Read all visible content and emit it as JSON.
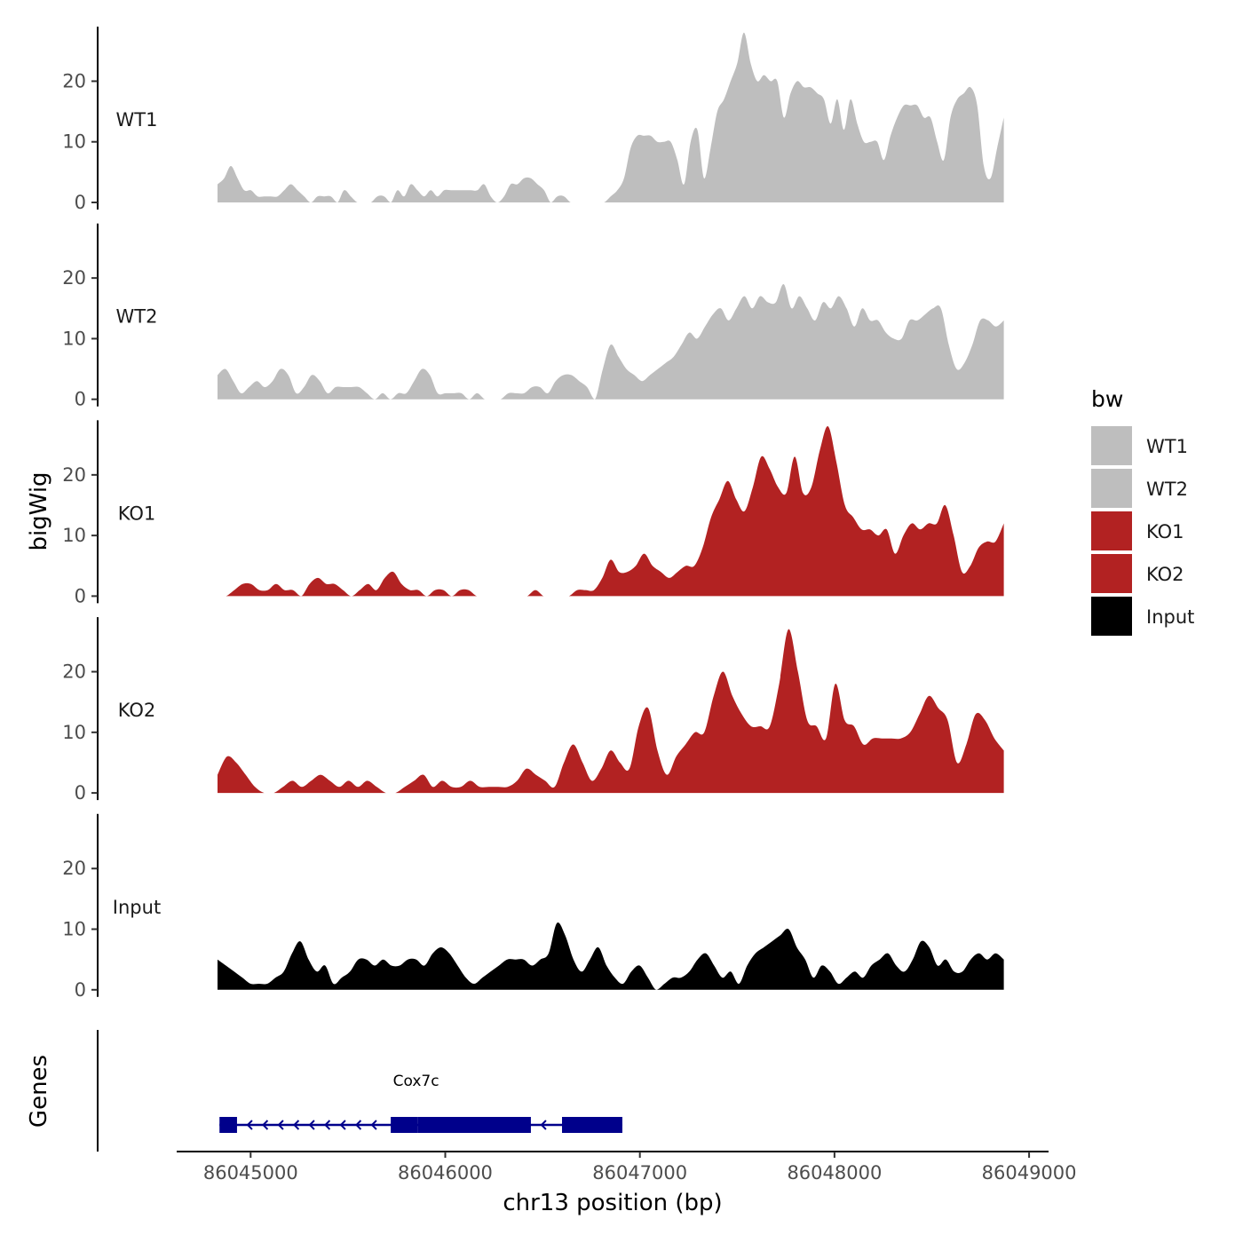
{
  "chart_data": {
    "type": "area",
    "ylabel": "bigWig",
    "genes_label": "Genes",
    "xlabel": "chr13 position (bp)",
    "xlim": [
      86044620,
      86049100
    ],
    "data_range": [
      86044830,
      86048870
    ],
    "ylim": [
      0,
      29
    ],
    "y_ticks": [
      0,
      10,
      20
    ],
    "x_ticks": [
      86045000,
      86046000,
      86047000,
      86048000,
      86049000
    ],
    "legend": {
      "title": "bw",
      "entries": [
        {
          "label": "WT1",
          "color": "#bebebe"
        },
        {
          "label": "WT2",
          "color": "#bebebe"
        },
        {
          "label": "KO1",
          "color": "#b22222"
        },
        {
          "label": "KO2",
          "color": "#b22222"
        },
        {
          "label": "Input",
          "color": "#000000"
        }
      ]
    },
    "tracks": [
      {
        "name": "WT1",
        "color": "#bebebe",
        "values": [
          3,
          4,
          6,
          4,
          2,
          2,
          1,
          1,
          1,
          1,
          2,
          3,
          2,
          1,
          0,
          1,
          1,
          1,
          0,
          2,
          1,
          0,
          0,
          0,
          1,
          1,
          0,
          2,
          1,
          3,
          2,
          1,
          2,
          1,
          2,
          2,
          2,
          2,
          2,
          2,
          3,
          1,
          0,
          1,
          3,
          3,
          4,
          4,
          3,
          2,
          0,
          1,
          1,
          0,
          0,
          0,
          0,
          0,
          0,
          1,
          2,
          4,
          9,
          11,
          11,
          11,
          10,
          10,
          10,
          7,
          3,
          10,
          12,
          4,
          9,
          15,
          17,
          20,
          23,
          28,
          23,
          20,
          21,
          20,
          20,
          14,
          18,
          20,
          19,
          19,
          18,
          17,
          13,
          17,
          12,
          17,
          13,
          10,
          10,
          10,
          7,
          11,
          14,
          16,
          16,
          16,
          14,
          14,
          10,
          7,
          14,
          17,
          18,
          19,
          16,
          6,
          4,
          9,
          14
        ]
      },
      {
        "name": "WT2",
        "color": "#bebebe",
        "values": [
          4,
          5,
          3,
          1,
          2,
          3,
          2,
          3,
          5,
          4,
          1,
          2,
          4,
          3,
          1,
          2,
          2,
          2,
          2,
          1,
          0,
          1,
          0,
          1,
          1,
          3,
          5,
          4,
          1,
          1,
          1,
          1,
          0,
          1,
          0,
          0,
          0,
          1,
          1,
          1,
          2,
          2,
          1,
          3,
          4,
          4,
          3,
          2,
          0,
          5,
          9,
          7,
          5,
          4,
          3,
          4,
          5,
          6,
          7,
          9,
          11,
          10,
          12,
          14,
          15,
          13,
          15,
          17,
          15,
          17,
          16,
          16,
          19,
          15,
          17,
          15,
          13,
          16,
          15,
          17,
          15,
          12,
          15,
          13,
          13,
          11,
          10,
          10,
          13,
          13,
          14,
          15,
          15,
          9,
          5,
          6,
          9,
          13,
          13,
          12,
          13
        ]
      },
      {
        "name": "KO1",
        "color": "#b22222",
        "values": [
          0,
          0,
          1,
          2,
          2,
          1,
          1,
          2,
          1,
          1,
          0,
          2,
          3,
          2,
          2,
          1,
          0,
          1,
          2,
          1,
          3,
          4,
          2,
          1,
          1,
          0,
          1,
          1,
          0,
          1,
          1,
          0,
          0,
          0,
          0,
          0,
          0,
          0,
          1,
          0,
          0,
          0,
          0,
          1,
          1,
          1,
          3,
          6,
          4,
          4,
          5,
          7,
          5,
          4,
          3,
          4,
          5,
          5,
          8,
          13,
          16,
          19,
          16,
          14,
          18,
          23,
          21,
          18,
          17,
          23,
          17,
          18,
          24,
          28,
          22,
          15,
          13,
          11,
          11,
          10,
          11,
          7,
          10,
          12,
          11,
          12,
          12,
          15,
          10,
          4,
          5,
          8,
          9,
          9,
          12
        ]
      },
      {
        "name": "KO2",
        "color": "#b22222",
        "values": [
          3,
          6,
          5,
          3,
          1,
          0,
          0,
          1,
          2,
          1,
          2,
          3,
          2,
          1,
          2,
          1,
          2,
          1,
          0,
          0,
          1,
          2,
          3,
          1,
          2,
          1,
          1,
          2,
          1,
          1,
          1,
          1,
          2,
          4,
          3,
          2,
          1,
          5,
          8,
          5,
          2,
          4,
          7,
          5,
          4,
          11,
          14,
          7,
          3,
          6,
          8,
          10,
          10,
          16,
          20,
          16,
          13,
          11,
          11,
          11,
          18,
          27,
          20,
          12,
          11,
          9,
          18,
          12,
          11,
          8,
          9,
          9,
          9,
          9,
          10,
          13,
          16,
          14,
          12,
          5,
          8,
          13,
          12,
          9,
          7
        ]
      },
      {
        "name": "Input",
        "color": "#000000",
        "values": [
          5,
          4,
          3,
          2,
          1,
          1,
          1,
          2,
          3,
          6,
          8,
          5,
          3,
          4,
          1,
          2,
          3,
          5,
          5,
          4,
          5,
          4,
          4,
          5,
          5,
          4,
          6,
          7,
          6,
          4,
          2,
          1,
          2,
          3,
          4,
          5,
          5,
          5,
          4,
          5,
          6,
          11,
          9,
          5,
          3,
          5,
          7,
          4,
          2,
          1,
          3,
          4,
          2,
          0,
          1,
          2,
          2,
          3,
          5,
          6,
          4,
          2,
          3,
          1,
          4,
          6,
          7,
          8,
          9,
          10,
          7,
          5,
          2,
          4,
          3,
          1,
          2,
          3,
          2,
          4,
          5,
          6,
          4,
          3,
          5,
          8,
          7,
          4,
          5,
          3,
          3,
          5,
          6,
          5,
          6,
          5
        ]
      }
    ],
    "genes": [
      {
        "name": "Cox7c",
        "start": 86044840,
        "end": 86046910,
        "strand": "-",
        "exons": [
          [
            86044840,
            86044930
          ],
          [
            86045720,
            86045860
          ],
          [
            86045860,
            86046440
          ],
          [
            86046600,
            86046910
          ]
        ]
      }
    ]
  }
}
